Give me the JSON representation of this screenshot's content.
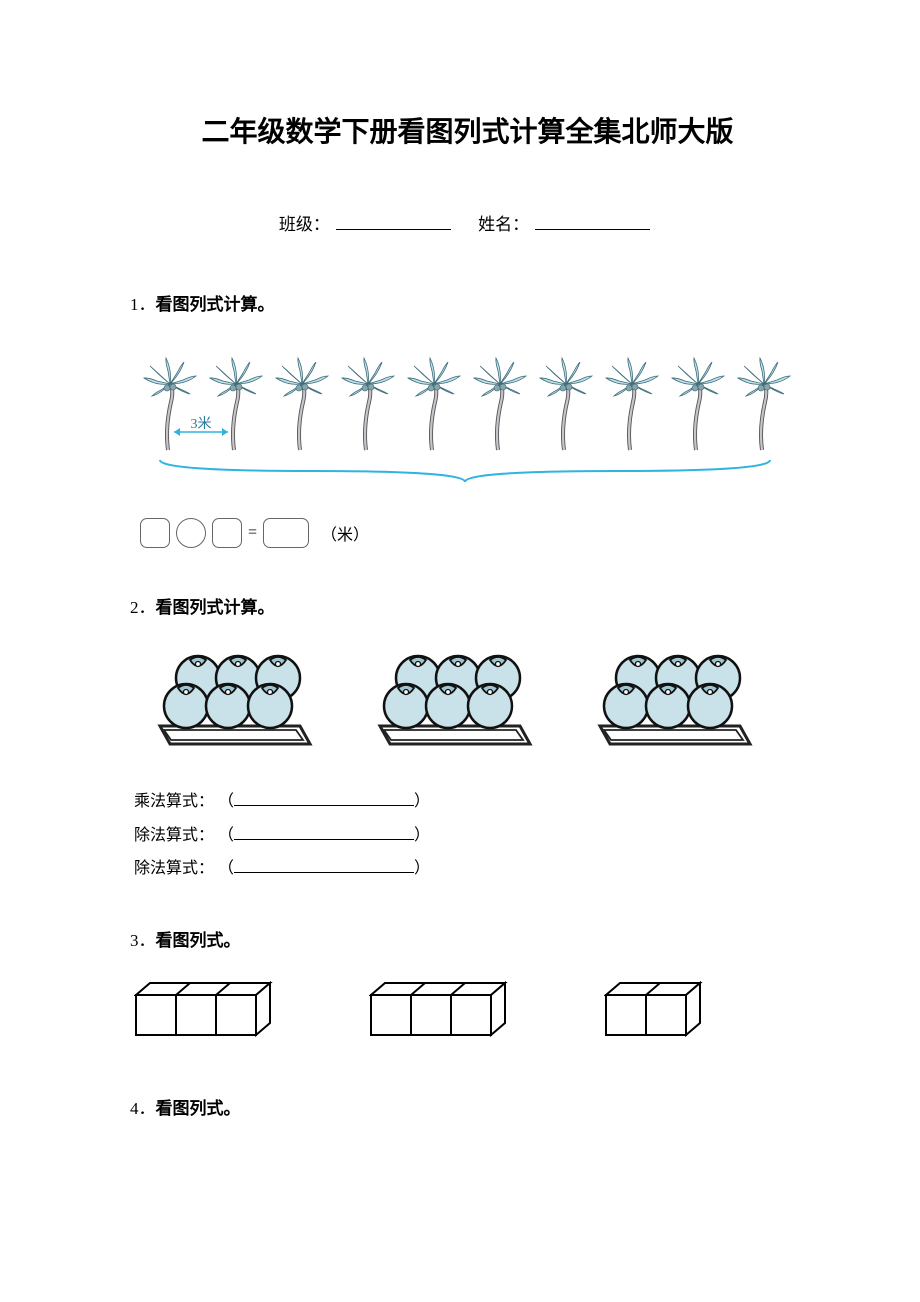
{
  "title": "二年级数学下册看图列式计算全集北师大版",
  "info": {
    "class_label": "班级：",
    "name_label": "姓名："
  },
  "q1": {
    "num": "1．",
    "heading": "看图列式计算。",
    "tree_count": 10,
    "gap_label": "3米",
    "unit": "（米）",
    "colors": {
      "leaf": "#bfe0ea",
      "trunk": "#c9c4cc",
      "brace": "#2fb3e0",
      "arrow": "#2fb3e0"
    }
  },
  "q2": {
    "num": "2．",
    "heading": "看图列式计算。",
    "plate_count": 3,
    "lines": [
      {
        "label": "乘法算式：",
        "open": "（",
        "close": "）"
      },
      {
        "label": "除法算式：",
        "open": "（",
        "close": "）"
      },
      {
        "label": "除法算式：",
        "open": "（",
        "close": "）"
      }
    ],
    "colors": {
      "berry": "#c9e1e9",
      "plate": "#222",
      "outline": "#111"
    }
  },
  "q3": {
    "num": "3．",
    "heading": "看图列式。",
    "groups": [
      3,
      3,
      2
    ],
    "colors": {
      "line": "#000"
    }
  },
  "q4": {
    "num": "4．",
    "heading": "看图列式。"
  }
}
